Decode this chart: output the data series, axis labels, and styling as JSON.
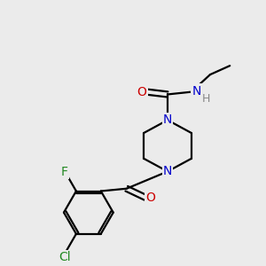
{
  "bg_color": "#ebebeb",
  "atom_colors": {
    "C": "#000000",
    "N": "#0000cc",
    "O": "#cc0000",
    "F": "#228822",
    "Cl": "#228822",
    "H": "#888888"
  },
  "bond_color": "#000000",
  "bond_width": 1.6,
  "figsize": [
    3.0,
    3.0
  ],
  "dpi": 100
}
